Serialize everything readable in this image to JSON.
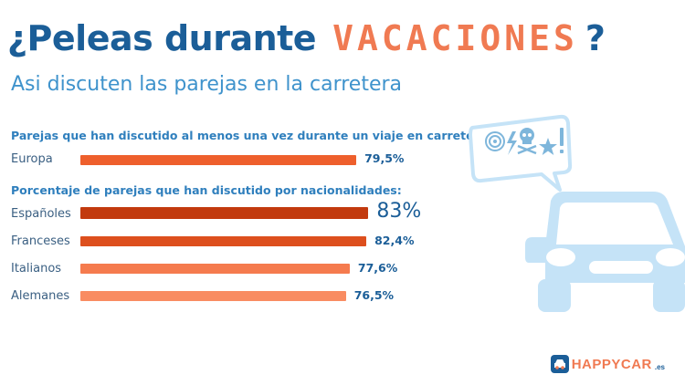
{
  "header": {
    "title_prefix": "¿Peleas durante",
    "title_highlight": "VACACIONES",
    "title_suffix": "?",
    "subtitle": "Asi discuten las parejas en la carretera"
  },
  "colors": {
    "title": "#1b5e98",
    "highlight": "#f07a52",
    "subtitle": "#3f93cc",
    "section": "#2f7fbd",
    "car": "#c5e3f7",
    "bar_europa": "#ee5f2c",
    "bar_espanoles": "#c23a0e",
    "bar_franceses": "#dd4f1d",
    "bar_italianos": "#f57b4e",
    "bar_alemanes": "#f98c62"
  },
  "chart_data": [
    {
      "type": "bar",
      "orientation": "horizontal",
      "title": "Parejas que han discutido al menos una vez durante un viaje en carretera:",
      "categories": [
        "Europa"
      ],
      "values": [
        79.5
      ],
      "value_labels": [
        "79,5%"
      ],
      "unit": "%",
      "xlim": [
        0,
        100
      ]
    },
    {
      "type": "bar",
      "orientation": "horizontal",
      "title": "Porcentaje de parejas que han discutido por nacionalidades:",
      "categories": [
        "Españoles",
        "Franceses",
        "Italianos",
        "Alemanes"
      ],
      "values": [
        83,
        82.4,
        77.6,
        76.5
      ],
      "value_labels": [
        "83%",
        "82,4%",
        "77,6%",
        "76,5%"
      ],
      "unit": "%",
      "xlim": [
        0,
        100
      ]
    }
  ],
  "illustration": {
    "icons": [
      "spiral-icon",
      "lightning-icon",
      "skull-icon",
      "star-icon",
      "exclamation-icon"
    ]
  },
  "logo": {
    "name": "HAPPYCAR",
    "tld": ".es"
  }
}
